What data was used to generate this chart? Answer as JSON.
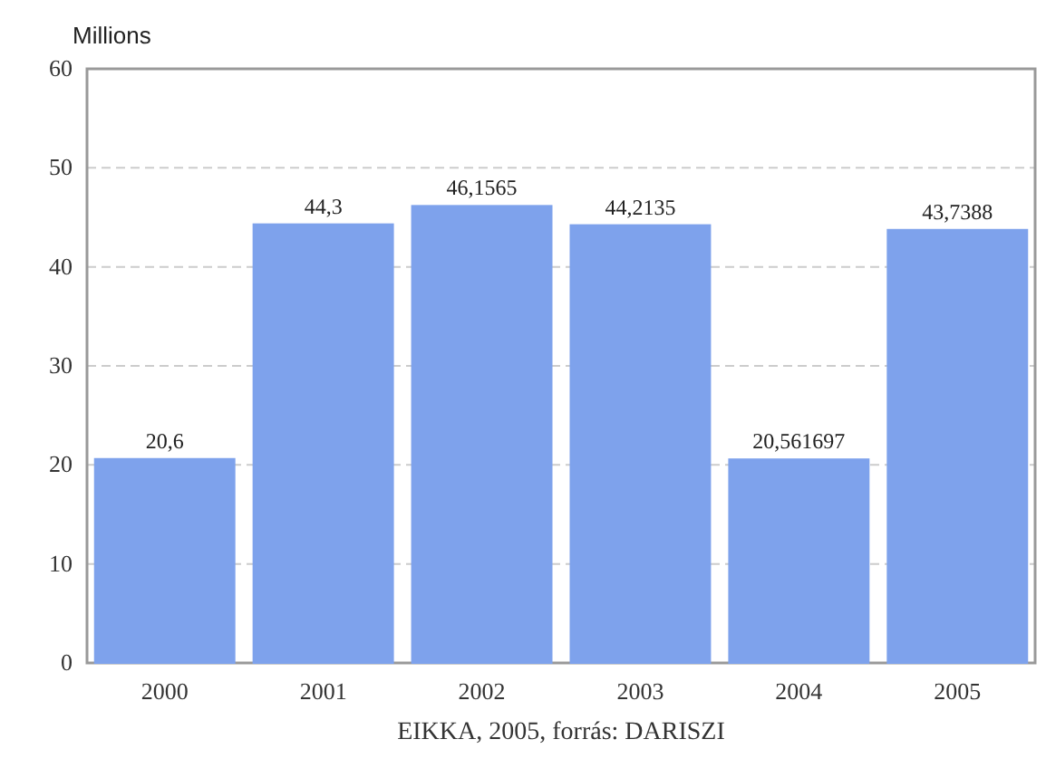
{
  "chart_data": {
    "type": "bar",
    "ylabel": "Millions",
    "categories": [
      "2000",
      "2001",
      "2002",
      "2003",
      "2004",
      "2005"
    ],
    "values": [
      20.6,
      44.3,
      46.1565,
      44.2135,
      20.561697,
      43.7388
    ],
    "value_labels": [
      "20,6",
      "44,3",
      "46,1565",
      "44,2135",
      "20,561697",
      "43,7388"
    ],
    "color": "#7ea2ec",
    "ylim": [
      0,
      60
    ],
    "yticks": [
      0,
      10,
      20,
      30,
      40,
      50,
      60
    ],
    "grid": "y",
    "annotations": [
      "EIKKA, 2005, forrás: DARISZI"
    ]
  }
}
